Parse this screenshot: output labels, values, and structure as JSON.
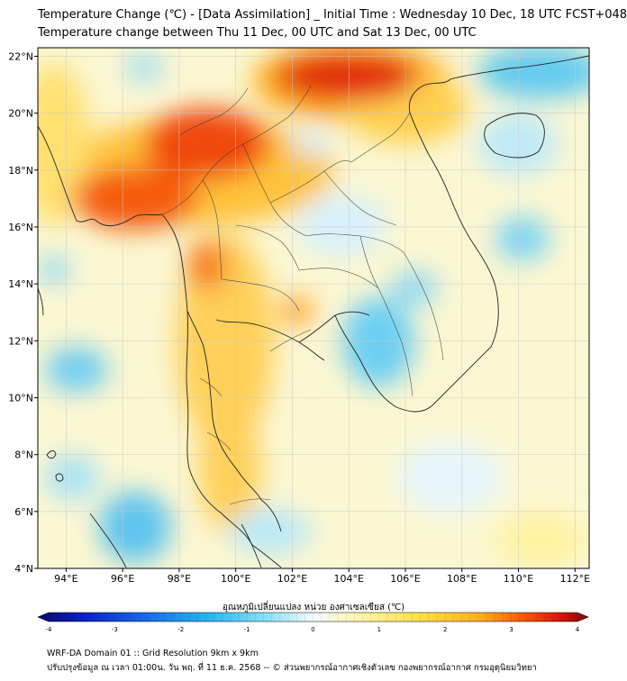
{
  "title_line1": "Temperature Change (℃) - [Data Assimilation] _ Initial Time : Wednesday 10 Dec, 18 UTC FCST+048",
  "title_line2": "Temperature change between Thu 11 Dec, 00 UTC and Sat 13 Dec, 00 UTC",
  "map": {
    "lon_range": [
      93,
      112.5
    ],
    "lat_range": [
      4,
      22.3
    ],
    "lat_ticks": [
      "4°N",
      "6°N",
      "8°N",
      "10°N",
      "12°N",
      "14°N",
      "16°N",
      "18°N",
      "20°N",
      "22°N"
    ],
    "lon_ticks": [
      "94°E",
      "96°E",
      "98°E",
      "100°E",
      "102°E",
      "104°E",
      "106°E",
      "108°E",
      "110°E",
      "112°E"
    ],
    "gridlines": true
  },
  "colorbar": {
    "label": "อุณหภูมิเปลี่ยนแปลง หน่วย องศาเซลเซียส (℃)",
    "ticks": [
      "-4",
      "-3",
      "-2",
      "-1",
      "0",
      "1",
      "2",
      "3",
      "4"
    ],
    "range": [
      -4,
      4
    ],
    "colors": [
      "#08086b",
      "#0b25c8",
      "#1a6ee8",
      "#27b6f0",
      "#8ee2f6",
      "#f4fbff",
      "#fff6b0",
      "#ffe14a",
      "#ffb020",
      "#f55c0c",
      "#d6150b",
      "#7a0a0a"
    ]
  },
  "footer_line1": "WRF-DA Domain 01 :: Grid Resolution 9km x 9km",
  "footer_line2": "ปรับปรุงข้อมูล ณ เวลา 01:00น. วัน พฤ. ที่ 11 ธ.ค. 2568 -- © ส่วนพยากรณ์อากาศเชิงตัวเลข กองพยากรณ์อากาศ กรมอุตุนิยมวิทยา"
}
